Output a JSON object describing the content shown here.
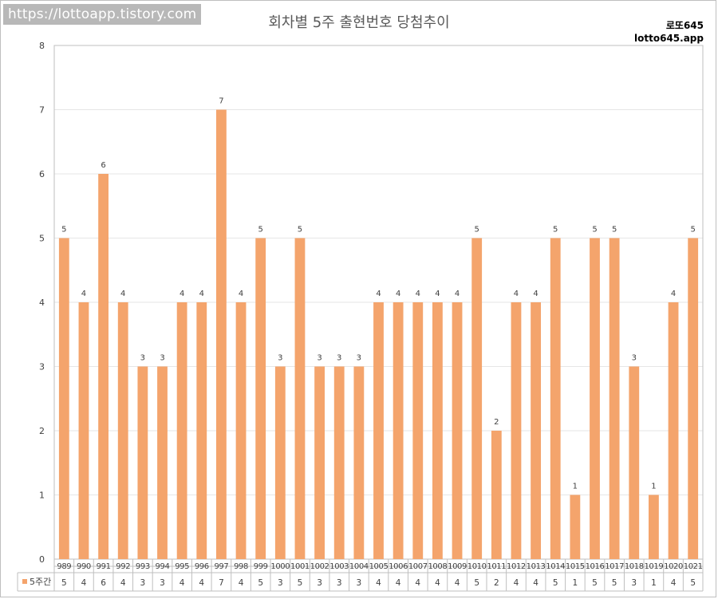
{
  "watermark": "https://lottoapp.tistory.com",
  "brand": {
    "line1": "로또645",
    "line2": "lotto645.app"
  },
  "colors": {
    "bar": "#f4a46c",
    "grid": "#e6e6e6",
    "axis": "#bfbfbf",
    "text": "#404040"
  },
  "chart_data": {
    "type": "bar",
    "title": "회차별 5주 출현번호 당첨추이",
    "xlabel": "",
    "ylabel": "",
    "ylim": [
      0,
      8
    ],
    "yticks": [
      0,
      1,
      2,
      3,
      4,
      5,
      6,
      7,
      8
    ],
    "grid": true,
    "legend": "bottom-left (data table)",
    "categories": [
      "989",
      "990",
      "991",
      "992",
      "993",
      "994",
      "995",
      "996",
      "997",
      "998",
      "999",
      "1000",
      "1001",
      "1002",
      "1003",
      "1004",
      "1005",
      "1006",
      "1007",
      "1008",
      "1009",
      "1010",
      "1011",
      "1012",
      "1013",
      "1014",
      "1015",
      "1016",
      "1017",
      "1018",
      "1019",
      "1020",
      "1021"
    ],
    "series": [
      {
        "name": "5주간",
        "values": [
          5,
          4,
          6,
          4,
          3,
          3,
          4,
          4,
          7,
          4,
          5,
          3,
          5,
          3,
          3,
          3,
          4,
          4,
          4,
          4,
          4,
          5,
          2,
          4,
          4,
          5,
          1,
          5,
          5,
          3,
          1,
          4,
          5
        ]
      }
    ]
  }
}
